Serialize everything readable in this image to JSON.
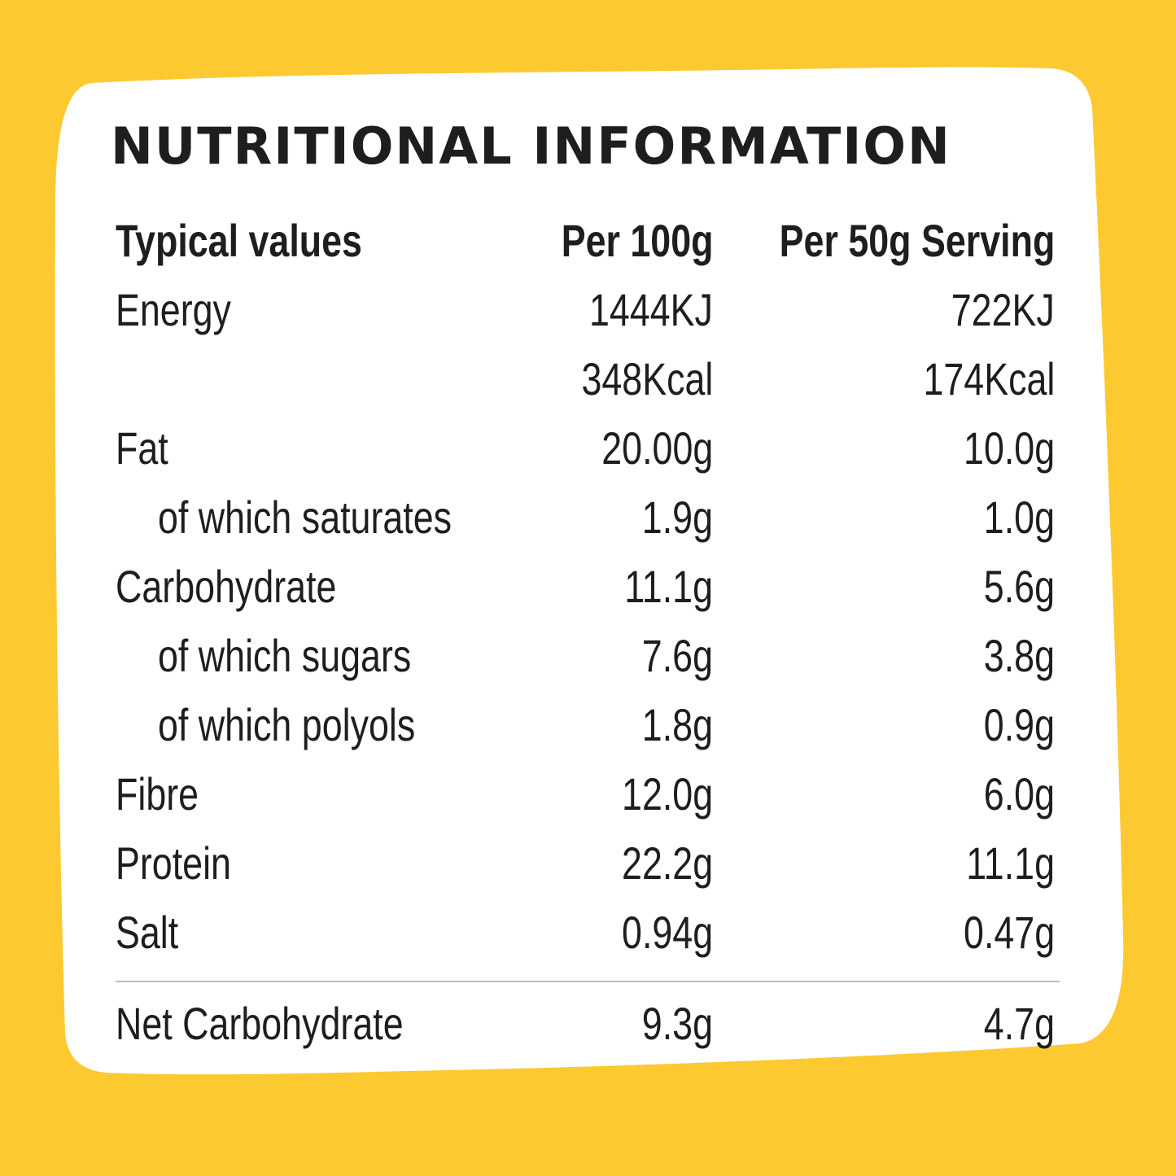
{
  "colors": {
    "background": "#FDC930",
    "panel": "#FFFFFF",
    "text": "#1E1E1E",
    "divider": "#BDBDBD"
  },
  "title": "NUTRITIONAL INFORMATION",
  "table": {
    "headers": {
      "label": "Typical values",
      "per100": "Per 100g",
      "perServing": "Per 50g Serving"
    },
    "rows": [
      {
        "label": "Energy",
        "per100": "1444KJ",
        "perServing": "722KJ"
      },
      {
        "label": "",
        "per100": "348Kcal",
        "perServing": "174Kcal"
      },
      {
        "label": "Fat",
        "per100": "20.00g",
        "perServing": "10.0g"
      },
      {
        "label": "of which saturates",
        "per100": "1.9g",
        "perServing": "1.0g"
      },
      {
        "label": "Carbohydrate",
        "per100": "11.1g",
        "perServing": "5.6g"
      },
      {
        "label": "of which sugars",
        "per100": "7.6g",
        "perServing": "3.8g"
      },
      {
        "label": "of which polyols",
        "per100": "1.8g",
        "perServing": "0.9g"
      },
      {
        "label": "Fibre",
        "per100": "12.0g",
        "perServing": "6.0g"
      },
      {
        "label": "Protein",
        "per100": "22.2g",
        "perServing": "11.1g"
      },
      {
        "label": "Salt",
        "per100": "0.94g",
        "perServing": "0.47g"
      }
    ],
    "footer": {
      "label": "Net Carbohydrate",
      "per100": "9.3g",
      "perServing": "4.7g"
    }
  }
}
